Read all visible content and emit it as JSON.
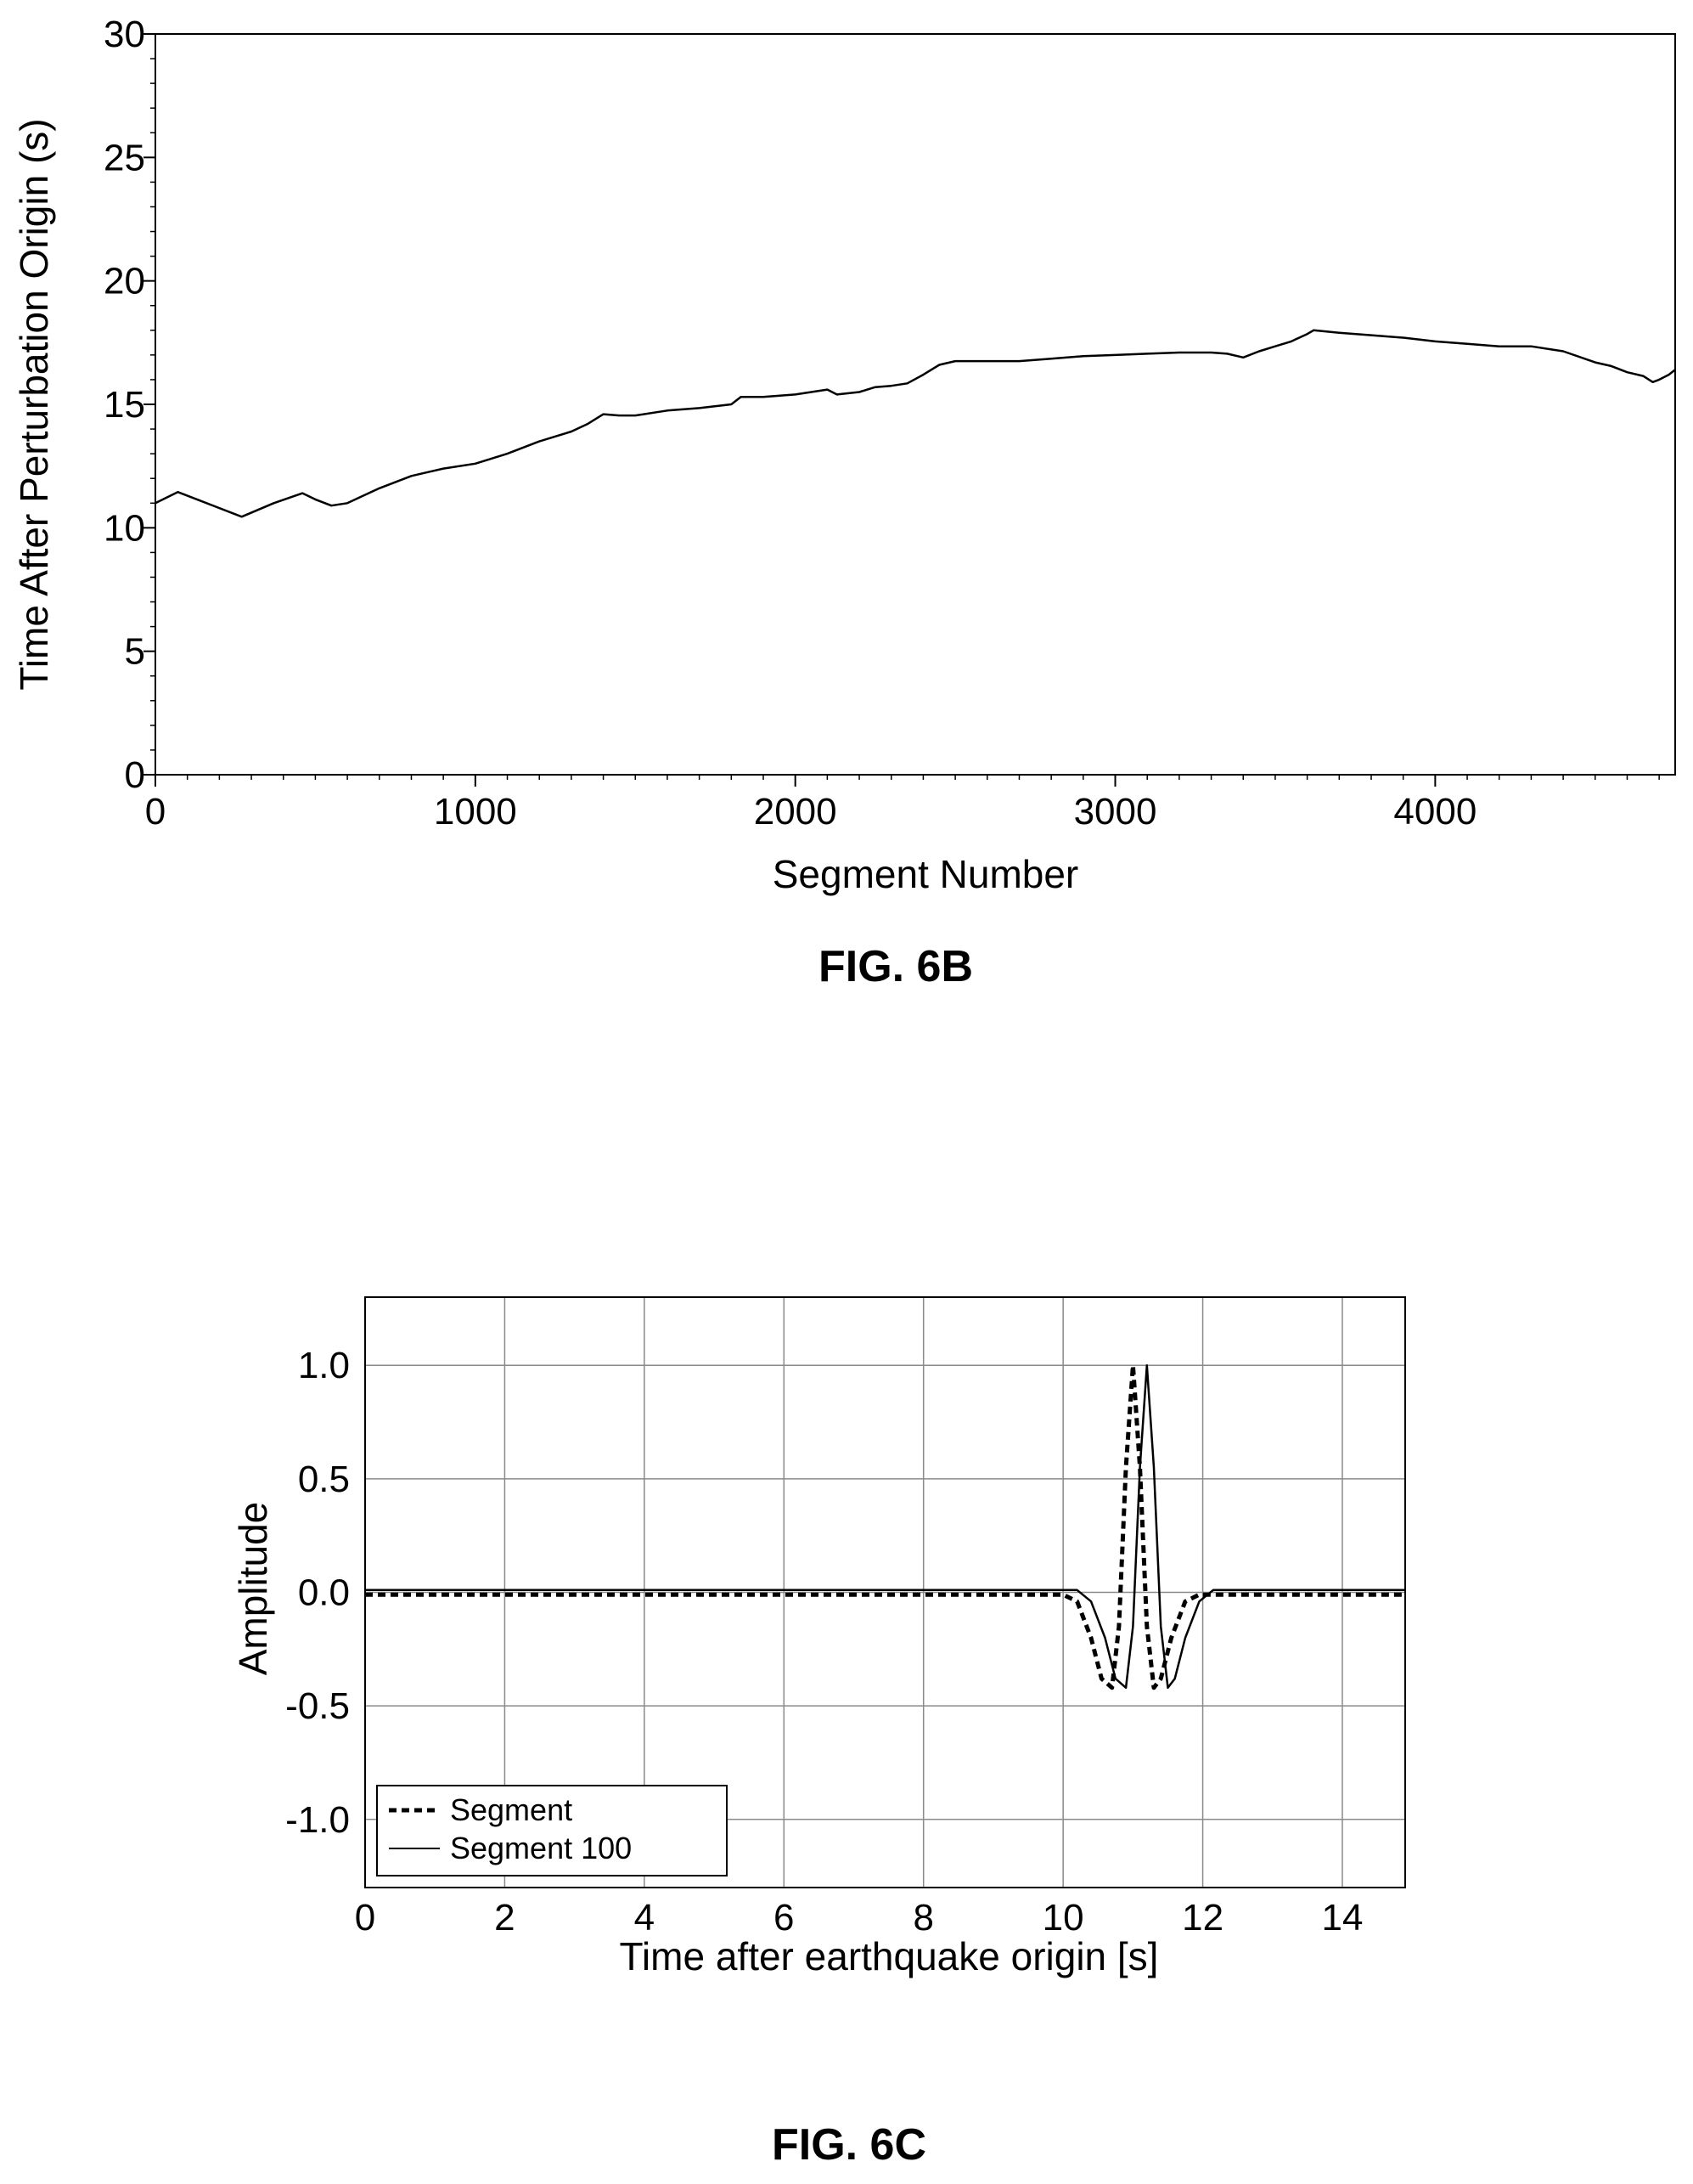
{
  "figures": [
    {
      "label": "FIG. 6B"
    },
    {
      "label": "FIG. 6C"
    }
  ],
  "chart_data": [
    {
      "type": "line",
      "xlabel": "Segment Number",
      "ylabel": "Time After Perturbation Origin (s)",
      "xlim": [
        0,
        4750
      ],
      "ylim": [
        0,
        30
      ],
      "x_ticks": [
        0,
        1000,
        2000,
        3000,
        4000
      ],
      "x_tick_labels": [
        "0",
        "1000",
        "2000",
        "3000",
        "4000"
      ],
      "y_ticks": [
        0,
        5,
        10,
        15,
        20,
        25,
        30
      ],
      "y_tick_labels": [
        "0",
        "5",
        "10",
        "15",
        "20",
        "25",
        "30"
      ],
      "grid": false,
      "series": [
        {
          "x": [
            0,
            70,
            150,
            270,
            370,
            460,
            500,
            550,
            600,
            650,
            700,
            800,
            900,
            1000,
            1050,
            1100,
            1200,
            1300,
            1350,
            1400,
            1450,
            1500,
            1600,
            1700,
            1800,
            1830,
            1900,
            2000,
            2100,
            2130,
            2200,
            2250,
            2300,
            2350,
            2400,
            2450,
            2500,
            2600,
            2700,
            2800,
            2900,
            3000,
            3100,
            3200,
            3300,
            3350,
            3400,
            3450,
            3500,
            3550,
            3600,
            3620,
            3700,
            3800,
            3900,
            4000,
            4100,
            4200,
            4300,
            4400,
            4500,
            4550,
            4600,
            4650,
            4680,
            4700,
            4730,
            4750
          ],
          "y": [
            11.0,
            11.45,
            11.05,
            10.45,
            11.0,
            11.4,
            11.15,
            10.9,
            11.0,
            11.3,
            11.6,
            12.1,
            12.4,
            12.6,
            12.8,
            13.0,
            13.5,
            13.9,
            14.2,
            14.6,
            14.55,
            14.55,
            14.75,
            14.85,
            15.0,
            15.3,
            15.3,
            15.4,
            15.6,
            15.4,
            15.5,
            15.7,
            15.75,
            15.85,
            16.2,
            16.6,
            16.75,
            16.75,
            16.75,
            16.85,
            16.95,
            17.0,
            17.05,
            17.1,
            17.1,
            17.05,
            16.9,
            17.15,
            17.35,
            17.55,
            17.85,
            18.0,
            17.9,
            17.8,
            17.7,
            17.55,
            17.45,
            17.35,
            17.35,
            17.15,
            16.7,
            16.55,
            16.3,
            16.15,
            15.9,
            16.0,
            16.2,
            16.4
          ]
        }
      ]
    },
    {
      "type": "line",
      "xlabel": "Time after earthquake origin [s]",
      "ylabel": "Amplitude",
      "xlim": [
        0,
        14.9
      ],
      "ylim": [
        -1.3,
        1.3
      ],
      "x_ticks": [
        0,
        2,
        4,
        6,
        8,
        10,
        12,
        14
      ],
      "x_tick_labels": [
        "0",
        "2",
        "4",
        "6",
        "8",
        "10",
        "12",
        "14"
      ],
      "y_ticks": [
        -1.0,
        -0.5,
        0.0,
        0.5,
        1.0
      ],
      "y_tick_labels": [
        "-1.0",
        "-0.5",
        "0.0",
        "0.5",
        "1.0"
      ],
      "grid": true,
      "legend_position": "bottom-left",
      "series": [
        {
          "name": "Segment",
          "style": "dashed",
          "x": [
            0,
            10.0,
            10.2,
            10.4,
            10.55,
            10.7,
            10.8,
            10.9,
            11.0,
            11.1,
            11.2,
            11.3,
            11.4,
            11.55,
            11.75,
            11.95,
            12.2,
            14.9
          ],
          "y": [
            -0.01,
            -0.01,
            -0.04,
            -0.2,
            -0.38,
            -0.42,
            -0.15,
            0.55,
            1.0,
            0.55,
            -0.15,
            -0.42,
            -0.38,
            -0.2,
            -0.04,
            -0.01,
            -0.01,
            -0.01
          ]
        },
        {
          "name": "Segment 100",
          "style": "solid",
          "x": [
            0,
            10.2,
            10.4,
            10.6,
            10.75,
            10.9,
            11.0,
            11.1,
            11.2,
            11.3,
            11.4,
            11.5,
            11.6,
            11.75,
            11.95,
            12.15,
            12.4,
            14.9
          ],
          "y": [
            0.01,
            0.01,
            -0.04,
            -0.2,
            -0.38,
            -0.42,
            -0.15,
            0.55,
            1.0,
            0.55,
            -0.15,
            -0.42,
            -0.38,
            -0.2,
            -0.04,
            0.01,
            0.01,
            0.01
          ]
        }
      ]
    }
  ]
}
